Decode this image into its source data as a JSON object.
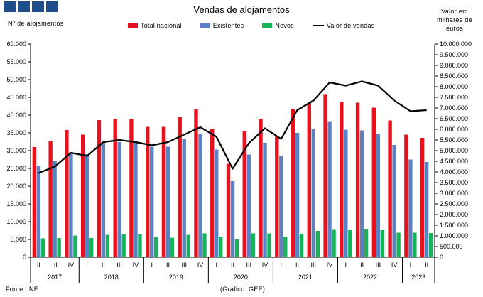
{
  "header": {
    "title": "Vendas de alojamentos",
    "left_axis_title": "Nº de alojamentos",
    "right_axis_title_lines": [
      "Valor em",
      "milhares de",
      "euros"
    ]
  },
  "footer": {
    "source": "Fonte: INE",
    "credit": "(Gráfico: GEE)"
  },
  "colors": {
    "total": "#e8121f",
    "existentes": "#5b82c3",
    "novos": "#17b35b",
    "valor": "#000000"
  },
  "chart_data": {
    "type": "bar",
    "title": "Vendas de alojamentos",
    "ylabel": "Nº de alojamentos",
    "y2label": "Valor em milhares de euros",
    "ylim": [
      0,
      60000
    ],
    "y2lim": [
      0,
      10000000
    ],
    "yticks": [
      "0",
      "5.000",
      "10.000",
      "15.000",
      "20.000",
      "25.000",
      "30.000",
      "35.000",
      "40.000",
      "45.000",
      "50.000",
      "55.000",
      "60.000"
    ],
    "y2ticks": [
      "0",
      "500.000",
      "1.000.000",
      "1.500.000",
      "2.000.000",
      "2.500.000",
      "3.000.000",
      "3.500.000",
      "4.000.000",
      "4.500.000",
      "5.000.000",
      "5.500.000",
      "6.000.000",
      "6.500.000",
      "7.000.000",
      "7.500.000",
      "8.000.000",
      "8.500.000",
      "9.000.000",
      "9.500.000",
      "10.000.000"
    ],
    "legend_position": "top",
    "categories": [
      "II",
      "III",
      "IV",
      "I",
      "II",
      "III",
      "IV",
      "I",
      "II",
      "III",
      "IV",
      "I",
      "II",
      "III",
      "IV",
      "I",
      "II",
      "III",
      "IV",
      "I",
      "II",
      "III",
      "IV",
      "I",
      "II"
    ],
    "years": [
      {
        "label": "2017",
        "count": 3
      },
      {
        "label": "2018",
        "count": 4
      },
      {
        "label": "2019",
        "count": 4
      },
      {
        "label": "2020",
        "count": 4
      },
      {
        "label": "2021",
        "count": 4
      },
      {
        "label": "2022",
        "count": 4
      },
      {
        "label": "2023",
        "count": 2
      }
    ],
    "series": [
      {
        "name": "Total nacional",
        "axis": "left",
        "values": [
          31000,
          32600,
          35800,
          34500,
          38600,
          38900,
          39000,
          36700,
          36700,
          39500,
          41600,
          36200,
          26300,
          35600,
          39000,
          34000,
          41700,
          43500,
          45900,
          43600,
          43500,
          42100,
          38500,
          34500,
          33600
        ]
      },
      {
        "name": "Existentes",
        "axis": "left",
        "values": [
          25800,
          27000,
          29500,
          29000,
          32400,
          32400,
          32700,
          31100,
          31100,
          33200,
          34800,
          30300,
          21400,
          28900,
          32200,
          28600,
          35000,
          36000,
          38100,
          35900,
          35700,
          34600,
          31600,
          27500,
          26800
        ]
      },
      {
        "name": "Novos",
        "axis": "left",
        "values": [
          5300,
          5400,
          6100,
          5400,
          6300,
          6500,
          6400,
          5700,
          5500,
          6300,
          6700,
          5800,
          5000,
          6700,
          6700,
          5800,
          6600,
          7400,
          7700,
          7600,
          7800,
          7600,
          6900,
          6900,
          6800
        ]
      },
      {
        "name": "Valor de vendas",
        "axis": "right",
        "values": [
          3950000,
          4250000,
          4900000,
          4750000,
          5400000,
          5500000,
          5400000,
          5250000,
          5400000,
          5750000,
          6100000,
          5650000,
          4150000,
          5350000,
          6050000,
          5550000,
          6900000,
          7350000,
          8200000,
          8050000,
          8250000,
          8050000,
          7350000,
          6850000,
          6900000
        ]
      }
    ]
  }
}
